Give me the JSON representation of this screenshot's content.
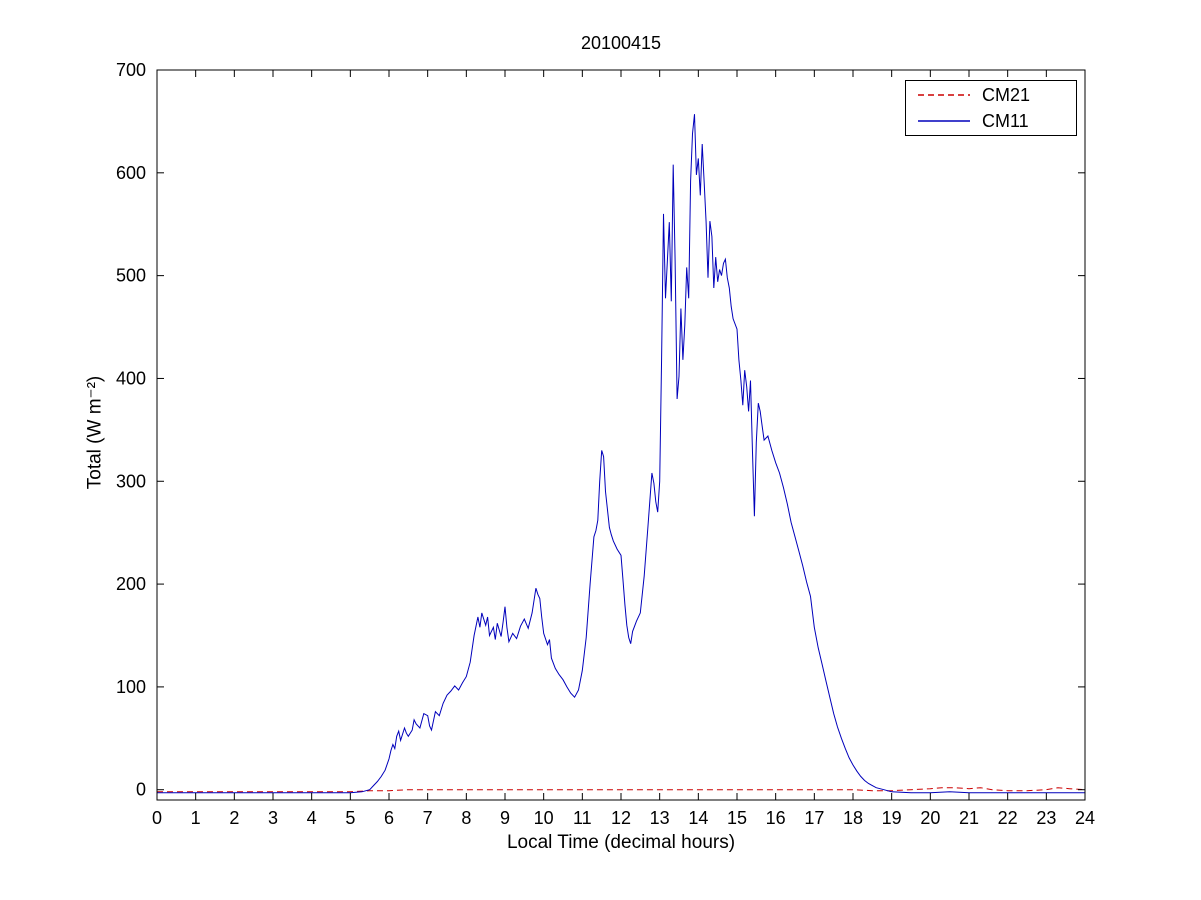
{
  "chart_data": {
    "type": "line",
    "title": "20100415",
    "xlabel": "Local Time (decimal hours)",
    "ylabel": "Total (W m⁻²)",
    "xlim": [
      0,
      24
    ],
    "ylim": [
      -10,
      700
    ],
    "xticks": [
      0,
      1,
      2,
      3,
      4,
      5,
      6,
      7,
      8,
      9,
      10,
      11,
      12,
      13,
      14,
      15,
      16,
      17,
      18,
      19,
      20,
      21,
      22,
      23,
      24
    ],
    "yticks": [
      0,
      100,
      200,
      300,
      400,
      500,
      600,
      700
    ],
    "grid": false,
    "legend_position": "top-right",
    "series": [
      {
        "name": "CM21",
        "color": "#cc0000",
        "style": "dashed",
        "points": [
          [
            0,
            -2
          ],
          [
            1,
            -2
          ],
          [
            2,
            -2
          ],
          [
            3,
            -2
          ],
          [
            4,
            -2
          ],
          [
            5,
            -2
          ],
          [
            5.5,
            -1
          ],
          [
            6,
            -1
          ],
          [
            6.5,
            0
          ],
          [
            7,
            0
          ],
          [
            8,
            0
          ],
          [
            9,
            0
          ],
          [
            10,
            0
          ],
          [
            11,
            0
          ],
          [
            12,
            0
          ],
          [
            13,
            0
          ],
          [
            14,
            0
          ],
          [
            15,
            0
          ],
          [
            16,
            0
          ],
          [
            17,
            0
          ],
          [
            18,
            0
          ],
          [
            18.5,
            -1
          ],
          [
            19,
            -1
          ],
          [
            19.5,
            0
          ],
          [
            20,
            1
          ],
          [
            20.3,
            2
          ],
          [
            20.6,
            2
          ],
          [
            21,
            1
          ],
          [
            21.3,
            2
          ],
          [
            21.6,
            0
          ],
          [
            22,
            -1
          ],
          [
            22.5,
            -1
          ],
          [
            23,
            0
          ],
          [
            23.3,
            2
          ],
          [
            23.6,
            1
          ],
          [
            24,
            0
          ]
        ]
      },
      {
        "name": "CM11",
        "color": "#0000bb",
        "style": "solid",
        "points": [
          [
            0,
            -3
          ],
          [
            0.5,
            -3
          ],
          [
            1,
            -3
          ],
          [
            1.5,
            -3
          ],
          [
            2,
            -3
          ],
          [
            2.5,
            -3
          ],
          [
            3,
            -3
          ],
          [
            3.5,
            -3
          ],
          [
            4,
            -3
          ],
          [
            4.5,
            -3
          ],
          [
            5,
            -3
          ],
          [
            5.3,
            -2
          ],
          [
            5.5,
            0
          ],
          [
            5.6,
            4
          ],
          [
            5.7,
            8
          ],
          [
            5.8,
            13
          ],
          [
            5.9,
            19
          ],
          [
            6,
            30
          ],
          [
            6.05,
            38
          ],
          [
            6.1,
            44
          ],
          [
            6.15,
            40
          ],
          [
            6.2,
            52
          ],
          [
            6.25,
            57
          ],
          [
            6.3,
            48
          ],
          [
            6.4,
            60
          ],
          [
            6.45,
            55
          ],
          [
            6.5,
            52
          ],
          [
            6.6,
            58
          ],
          [
            6.65,
            68
          ],
          [
            6.7,
            64
          ],
          [
            6.8,
            60
          ],
          [
            6.9,
            74
          ],
          [
            7,
            72
          ],
          [
            7.05,
            62
          ],
          [
            7.1,
            58
          ],
          [
            7.2,
            76
          ],
          [
            7.3,
            72
          ],
          [
            7.4,
            84
          ],
          [
            7.5,
            92
          ],
          [
            7.6,
            96
          ],
          [
            7.7,
            101
          ],
          [
            7.8,
            97
          ],
          [
            7.9,
            104
          ],
          [
            8,
            110
          ],
          [
            8.1,
            124
          ],
          [
            8.2,
            150
          ],
          [
            8.3,
            168
          ],
          [
            8.35,
            158
          ],
          [
            8.4,
            172
          ],
          [
            8.45,
            166
          ],
          [
            8.5,
            160
          ],
          [
            8.55,
            168
          ],
          [
            8.6,
            150
          ],
          [
            8.7,
            158
          ],
          [
            8.75,
            146
          ],
          [
            8.8,
            162
          ],
          [
            8.9,
            149
          ],
          [
            8.95,
            163
          ],
          [
            9,
            178
          ],
          [
            9.05,
            158
          ],
          [
            9.1,
            144
          ],
          [
            9.2,
            152
          ],
          [
            9.3,
            147
          ],
          [
            9.4,
            159
          ],
          [
            9.5,
            166
          ],
          [
            9.6,
            157
          ],
          [
            9.7,
            172
          ],
          [
            9.8,
            196
          ],
          [
            9.85,
            190
          ],
          [
            9.9,
            186
          ],
          [
            9.95,
            168
          ],
          [
            10,
            152
          ],
          [
            10.1,
            141
          ],
          [
            10.15,
            146
          ],
          [
            10.2,
            128
          ],
          [
            10.3,
            118
          ],
          [
            10.4,
            112
          ],
          [
            10.5,
            107
          ],
          [
            10.6,
            100
          ],
          [
            10.7,
            94
          ],
          [
            10.8,
            90
          ],
          [
            10.9,
            97
          ],
          [
            11,
            116
          ],
          [
            11.1,
            148
          ],
          [
            11.2,
            200
          ],
          [
            11.3,
            246
          ],
          [
            11.35,
            252
          ],
          [
            11.4,
            262
          ],
          [
            11.45,
            300
          ],
          [
            11.5,
            330
          ],
          [
            11.55,
            324
          ],
          [
            11.6,
            290
          ],
          [
            11.7,
            255
          ],
          [
            11.75,
            248
          ],
          [
            11.8,
            242
          ],
          [
            11.9,
            234
          ],
          [
            12,
            228
          ],
          [
            12.05,
            205
          ],
          [
            12.1,
            180
          ],
          [
            12.15,
            160
          ],
          [
            12.2,
            148
          ],
          [
            12.25,
            142
          ],
          [
            12.3,
            154
          ],
          [
            12.4,
            164
          ],
          [
            12.5,
            172
          ],
          [
            12.6,
            208
          ],
          [
            12.7,
            258
          ],
          [
            12.8,
            308
          ],
          [
            12.85,
            298
          ],
          [
            12.9,
            280
          ],
          [
            12.95,
            270
          ],
          [
            13,
            300
          ],
          [
            13.05,
            420
          ],
          [
            13.1,
            560
          ],
          [
            13.15,
            478
          ],
          [
            13.2,
            515
          ],
          [
            13.25,
            552
          ],
          [
            13.3,
            475
          ],
          [
            13.35,
            608
          ],
          [
            13.4,
            515
          ],
          [
            13.45,
            380
          ],
          [
            13.5,
            402
          ],
          [
            13.55,
            468
          ],
          [
            13.6,
            418
          ],
          [
            13.65,
            452
          ],
          [
            13.7,
            508
          ],
          [
            13.75,
            478
          ],
          [
            13.8,
            592
          ],
          [
            13.85,
            638
          ],
          [
            13.9,
            657
          ],
          [
            13.95,
            598
          ],
          [
            14,
            614
          ],
          [
            14.05,
            578
          ],
          [
            14.1,
            628
          ],
          [
            14.15,
            592
          ],
          [
            14.2,
            552
          ],
          [
            14.25,
            498
          ],
          [
            14.3,
            553
          ],
          [
            14.35,
            538
          ],
          [
            14.4,
            488
          ],
          [
            14.45,
            518
          ],
          [
            14.5,
            494
          ],
          [
            14.55,
            506
          ],
          [
            14.6,
            500
          ],
          [
            14.65,
            512
          ],
          [
            14.7,
            516
          ],
          [
            14.75,
            498
          ],
          [
            14.8,
            488
          ],
          [
            14.85,
            470
          ],
          [
            14.9,
            458
          ],
          [
            15,
            448
          ],
          [
            15.05,
            418
          ],
          [
            15.1,
            398
          ],
          [
            15.15,
            374
          ],
          [
            15.2,
            408
          ],
          [
            15.25,
            392
          ],
          [
            15.3,
            368
          ],
          [
            15.35,
            398
          ],
          [
            15.4,
            328
          ],
          [
            15.45,
            266
          ],
          [
            15.5,
            338
          ],
          [
            15.55,
            376
          ],
          [
            15.6,
            368
          ],
          [
            15.65,
            354
          ],
          [
            15.7,
            340
          ],
          [
            15.8,
            344
          ],
          [
            15.9,
            330
          ],
          [
            16,
            318
          ],
          [
            16.1,
            308
          ],
          [
            16.2,
            294
          ],
          [
            16.3,
            278
          ],
          [
            16.4,
            260
          ],
          [
            16.5,
            246
          ],
          [
            16.6,
            232
          ],
          [
            16.7,
            218
          ],
          [
            16.8,
            202
          ],
          [
            16.9,
            188
          ],
          [
            17,
            158
          ],
          [
            17.1,
            138
          ],
          [
            17.2,
            122
          ],
          [
            17.3,
            106
          ],
          [
            17.4,
            90
          ],
          [
            17.5,
            74
          ],
          [
            17.6,
            61
          ],
          [
            17.7,
            50
          ],
          [
            17.8,
            40
          ],
          [
            17.9,
            31
          ],
          [
            18,
            24
          ],
          [
            18.1,
            18
          ],
          [
            18.2,
            13
          ],
          [
            18.3,
            9
          ],
          [
            18.4,
            6
          ],
          [
            18.5,
            4
          ],
          [
            18.6,
            2
          ],
          [
            18.8,
            0
          ],
          [
            19,
            -2
          ],
          [
            19.5,
            -3
          ],
          [
            20,
            -3
          ],
          [
            20.5,
            -2
          ],
          [
            21,
            -3
          ],
          [
            21.5,
            -3
          ],
          [
            22,
            -3
          ],
          [
            22.5,
            -3
          ],
          [
            23,
            -3
          ],
          [
            23.5,
            -3
          ],
          [
            24,
            -3
          ]
        ]
      }
    ]
  }
}
